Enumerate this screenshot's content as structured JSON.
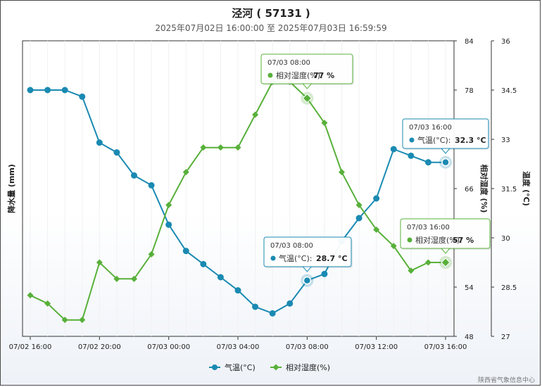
{
  "chart_data": {
    "type": "line",
    "title": "泾河 ( 57131 )",
    "subtitle": "2025年07月02日 16:00:00 至 2025年07月03日 16:59:59",
    "credit": "陕西省气象信息中心",
    "x_tick_labels": [
      "07/02 16:00",
      "07/02 20:00",
      "07/03 00:00",
      "07/03 04:00",
      "07/03 08:00",
      "07/03 12:00",
      "07/03 16:00"
    ],
    "x": [
      "07/02 16:00",
      "07/02 17:00",
      "07/02 18:00",
      "07/02 19:00",
      "07/02 20:00",
      "07/02 21:00",
      "07/02 22:00",
      "07/02 23:00",
      "07/03 00:00",
      "07/03 01:00",
      "07/03 02:00",
      "07/03 03:00",
      "07/03 04:00",
      "07/03 05:00",
      "07/03 06:00",
      "07/03 07:00",
      "07/03 08:00",
      "07/03 09:00",
      "07/03 10:00",
      "07/03 11:00",
      "07/03 12:00",
      "07/03 13:00",
      "07/03 14:00",
      "07/03 15:00",
      "07/03 16:00"
    ],
    "axes": {
      "left": {
        "label": "降水量 (mm)"
      },
      "right_humidity": {
        "label": "相对湿度 (%)",
        "ticks": [
          "84",
          "78",
          "72",
          "66",
          "60",
          "54",
          "48"
        ],
        "range": [
          48,
          84
        ]
      },
      "right_temperature": {
        "label": "温度 (°C)",
        "ticks": [
          "36",
          "34.5",
          "33",
          "31.5",
          "30",
          "28.5",
          "27"
        ],
        "range": [
          27,
          36
        ]
      }
    },
    "series": [
      {
        "name": "气温(°C)",
        "axis": "temperature",
        "color": "#1a8ab2",
        "values": [
          34.5,
          34.5,
          34.5,
          34.3,
          32.9,
          32.6,
          31.9,
          31.6,
          30.4,
          29.6,
          29.2,
          28.8,
          28.4,
          27.9,
          27.7,
          28.0,
          28.7,
          28.9,
          29.9,
          30.6,
          31.2,
          32.7,
          32.5,
          32.3,
          32.3
        ]
      },
      {
        "name": "相对湿度(%)",
        "axis": "humidity",
        "color": "#58b03a",
        "values": [
          53,
          52,
          50,
          50,
          57,
          55,
          55,
          58,
          64,
          68,
          71,
          71,
          71,
          75,
          79,
          79,
          77,
          74,
          68,
          64,
          61,
          59,
          56,
          57,
          57
        ]
      }
    ],
    "tooltips": [
      {
        "time": "07/03 08:00",
        "series": "相对湿度(%)",
        "label": "相对湿度(%):",
        "value": "77 %"
      },
      {
        "time": "07/03 16:00",
        "series": "气温(°C)",
        "label": "气温(°C):",
        "value": "32.3 °C"
      },
      {
        "time": "07/03 08:00",
        "series": "气温(°C)",
        "label": "气温(°C):",
        "value": "28.7 °C"
      },
      {
        "time": "07/03 16:00",
        "series": "相对湿度(%)",
        "label": "相对湿度(%):",
        "value": "57 %"
      }
    ],
    "legend_position": "bottom-center",
    "grid": true
  }
}
